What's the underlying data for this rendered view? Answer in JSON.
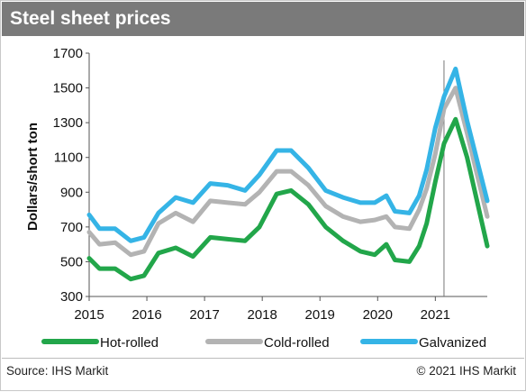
{
  "header": {
    "title": "Steel sheet prices"
  },
  "footer": {
    "source": "Source: IHS Markit",
    "copyright": "© 2021 IHS Markit"
  },
  "colors": {
    "hot_rolled": "#22a64a",
    "cold_rolled": "#b3b3b3",
    "galvanized": "#35b4e6",
    "header_bg": "#7a7a7a"
  },
  "chart_data": {
    "type": "line",
    "title": "Steel sheet prices",
    "ylabel": "Dollars/short ton",
    "xlabel": "",
    "ylim": [
      300,
      1700
    ],
    "xlim": [
      2015,
      2021.9
    ],
    "yticks": [
      300,
      500,
      700,
      900,
      1100,
      1300,
      1500,
      1700
    ],
    "xticks": [
      "2015",
      "2016",
      "2017",
      "2018",
      "2019",
      "2020",
      "2021"
    ],
    "grid": false,
    "legend_position": "bottom",
    "reference_line_x": 2021.15,
    "x": [
      2015.0,
      2015.18,
      2015.45,
      2015.72,
      2015.95,
      2016.2,
      2016.5,
      2016.8,
      2017.1,
      2017.4,
      2017.7,
      2017.95,
      2018.25,
      2018.5,
      2018.8,
      2019.1,
      2019.4,
      2019.7,
      2019.95,
      2020.15,
      2020.3,
      2020.55,
      2020.72,
      2020.85,
      2021.0,
      2021.15,
      2021.35,
      2021.55,
      2021.9
    ],
    "series": [
      {
        "name": "Hot-rolled",
        "values": [
          520,
          460,
          460,
          400,
          420,
          550,
          580,
          530,
          640,
          630,
          620,
          700,
          890,
          910,
          830,
          700,
          620,
          560,
          540,
          600,
          510,
          500,
          590,
          720,
          960,
          1180,
          1320,
          1100,
          590
        ]
      },
      {
        "name": "Cold-rolled",
        "values": [
          670,
          600,
          610,
          540,
          560,
          720,
          780,
          730,
          850,
          840,
          830,
          900,
          1020,
          1020,
          940,
          820,
          760,
          730,
          740,
          760,
          700,
          690,
          800,
          920,
          1120,
          1380,
          1500,
          1240,
          760
        ]
      },
      {
        "name": "Galvanized",
        "values": [
          770,
          690,
          690,
          620,
          640,
          780,
          870,
          840,
          950,
          940,
          910,
          1000,
          1140,
          1140,
          1040,
          910,
          870,
          840,
          840,
          880,
          790,
          780,
          880,
          1030,
          1270,
          1450,
          1610,
          1310,
          850
        ]
      }
    ]
  }
}
